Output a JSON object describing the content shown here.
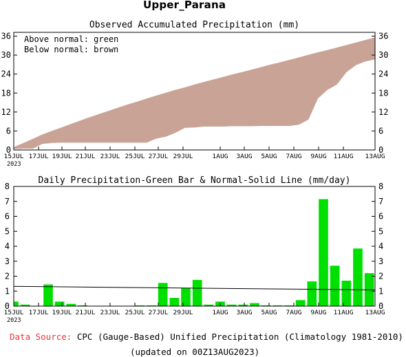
{
  "page_title": "Upper_Parana",
  "footer": {
    "source_label": "Data Source:",
    "source_text": "CPC (Gauge-Based) Unified Precipitation (Climatology 1981-2010)",
    "updated": "(updated on 00Z13AUG2023)"
  },
  "colors": {
    "accum_fill": "#c9a496",
    "bar": "#00e000",
    "normal_line": "#000000",
    "source_label": "#e8343c"
  },
  "chart_data": [
    {
      "type": "area",
      "title": "Observed Accumulated Precipitation (mm)",
      "annotations": [
        "Above normal: green",
        "Below normal: brown"
      ],
      "x_tick_labels": [
        "15JUL",
        "17JUL",
        "19JUL",
        "21JUL",
        "23JUL",
        "25JUL",
        "27JUL",
        "29JUL",
        "1AUG",
        "3AUG",
        "5AUG",
        "7AUG",
        "9AUG",
        "11AUG",
        "13AUG"
      ],
      "x_year_label": "2023",
      "y_ticks": [
        0,
        6,
        12,
        18,
        24,
        30,
        36
      ],
      "ylim": [
        0,
        37.2
      ],
      "series": [
        {
          "role": "normal",
          "values": [
            0.9,
            2.2,
            3.5,
            4.9,
            6.0,
            7.1,
            8.2,
            9.3,
            10.4,
            11.4,
            12.4,
            13.4,
            14.4,
            15.3,
            16.3,
            17.2,
            18.1,
            19.0,
            19.8,
            20.7,
            21.5,
            22.3,
            23.1,
            23.9,
            24.6,
            25.4,
            26.2,
            27.0,
            27.7,
            28.5,
            29.3,
            30.1,
            30.9,
            31.6,
            32.4,
            33.2,
            34.0,
            34.8,
            35.6
          ]
        },
        {
          "role": "observed",
          "values": [
            0.3,
            0.4,
            0.4,
            1.9,
            2.2,
            2.3,
            2.3,
            2.3,
            2.3,
            2.3,
            2.3,
            2.3,
            2.3,
            2.3,
            2.3,
            3.6,
            4.2,
            5.4,
            7.0,
            7.1,
            7.4,
            7.4,
            7.4,
            7.5,
            7.5,
            7.5,
            7.6,
            7.6,
            7.6,
            7.6,
            8.0,
            9.6,
            16.3,
            19.0,
            20.7,
            24.6,
            26.8,
            28.0,
            28.6
          ]
        }
      ]
    },
    {
      "type": "bar",
      "title": "Daily Precipitation-Green Bar & Normal-Solid Line (mm/day)",
      "x_tick_labels": [
        "15JUL",
        "17JUL",
        "19JUL",
        "21JUL",
        "23JUL",
        "25JUL",
        "27JUL",
        "29JUL",
        "1AUG",
        "3AUG",
        "5AUG",
        "7AUG",
        "9AUG",
        "11AUG",
        "13AUG"
      ],
      "x_year_label": "2023",
      "y_ticks": [
        0,
        1,
        2,
        3,
        4,
        5,
        6,
        7,
        8
      ],
      "ylim": [
        0,
        8
      ],
      "values": [
        0.3,
        0.1,
        0.0,
        1.45,
        0.3,
        0.15,
        0.05,
        0.0,
        0.0,
        0.0,
        0.0,
        0.05,
        0.05,
        1.55,
        0.55,
        1.2,
        1.75,
        0.1,
        0.3,
        0.1,
        0.1,
        0.2,
        0.05,
        0.05,
        0.05,
        0.4,
        1.65,
        7.15,
        2.7,
        1.7,
        3.85,
        2.2
      ],
      "normal_line": [
        1.32,
        1.08
      ]
    }
  ]
}
